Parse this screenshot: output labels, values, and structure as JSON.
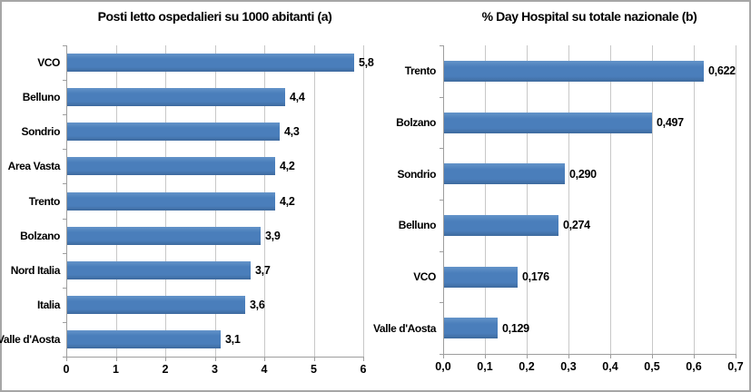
{
  "figure": {
    "background": "#ffffff",
    "frame_border_color": "#a6a6a6"
  },
  "colors": {
    "bar": "#4a7ebb",
    "bar_edge_dark": "#3e6a9e",
    "bar_edge_light": "#6494c9",
    "gridline": "#c8c8c8",
    "axis": "#9e9e9e",
    "text": "#000000"
  },
  "chart_data": [
    {
      "type": "bar",
      "orientation": "horizontal",
      "title": "Posti letto ospedalieri su 1000 abitanti (a)",
      "categories": [
        "VCO",
        "Belluno",
        "Sondrio",
        "Area Vasta",
        "Trento",
        "Bolzano",
        "Nord Italia",
        "Italia",
        "Valle d'Aosta"
      ],
      "values": [
        5.8,
        4.4,
        4.3,
        4.2,
        4.2,
        3.9,
        3.7,
        3.6,
        3.1
      ],
      "value_labels": [
        "5,8",
        "4,4",
        "4,3",
        "4,2",
        "4,2",
        "3,9",
        "3,7",
        "3,6",
        "3,1"
      ],
      "xlabel": "",
      "ylabel": "",
      "xlim": [
        0,
        6
      ],
      "tick_labels": [
        "0",
        "1",
        "2",
        "3",
        "4",
        "5",
        "6"
      ],
      "grid": true,
      "legend": false,
      "decimal_separator": "comma"
    },
    {
      "type": "bar",
      "orientation": "horizontal",
      "title": "% Day Hospital su totale nazionale (b)",
      "categories": [
        "Trento",
        "Bolzano",
        "Sondrio",
        "Belluno",
        "VCO",
        "Valle d'Aosta"
      ],
      "values": [
        0.622,
        0.497,
        0.29,
        0.274,
        0.176,
        0.129
      ],
      "value_labels": [
        "0,622",
        "0,497",
        "0,290",
        "0,274",
        "0,176",
        "0,129"
      ],
      "xlabel": "",
      "ylabel": "",
      "xlim": [
        0,
        0.7
      ],
      "tick_labels": [
        "0,0",
        "0,1",
        "0,2",
        "0,3",
        "0,4",
        "0,5",
        "0,6",
        "0,7"
      ],
      "grid": true,
      "legend": false,
      "decimal_separator": "comma"
    }
  ]
}
